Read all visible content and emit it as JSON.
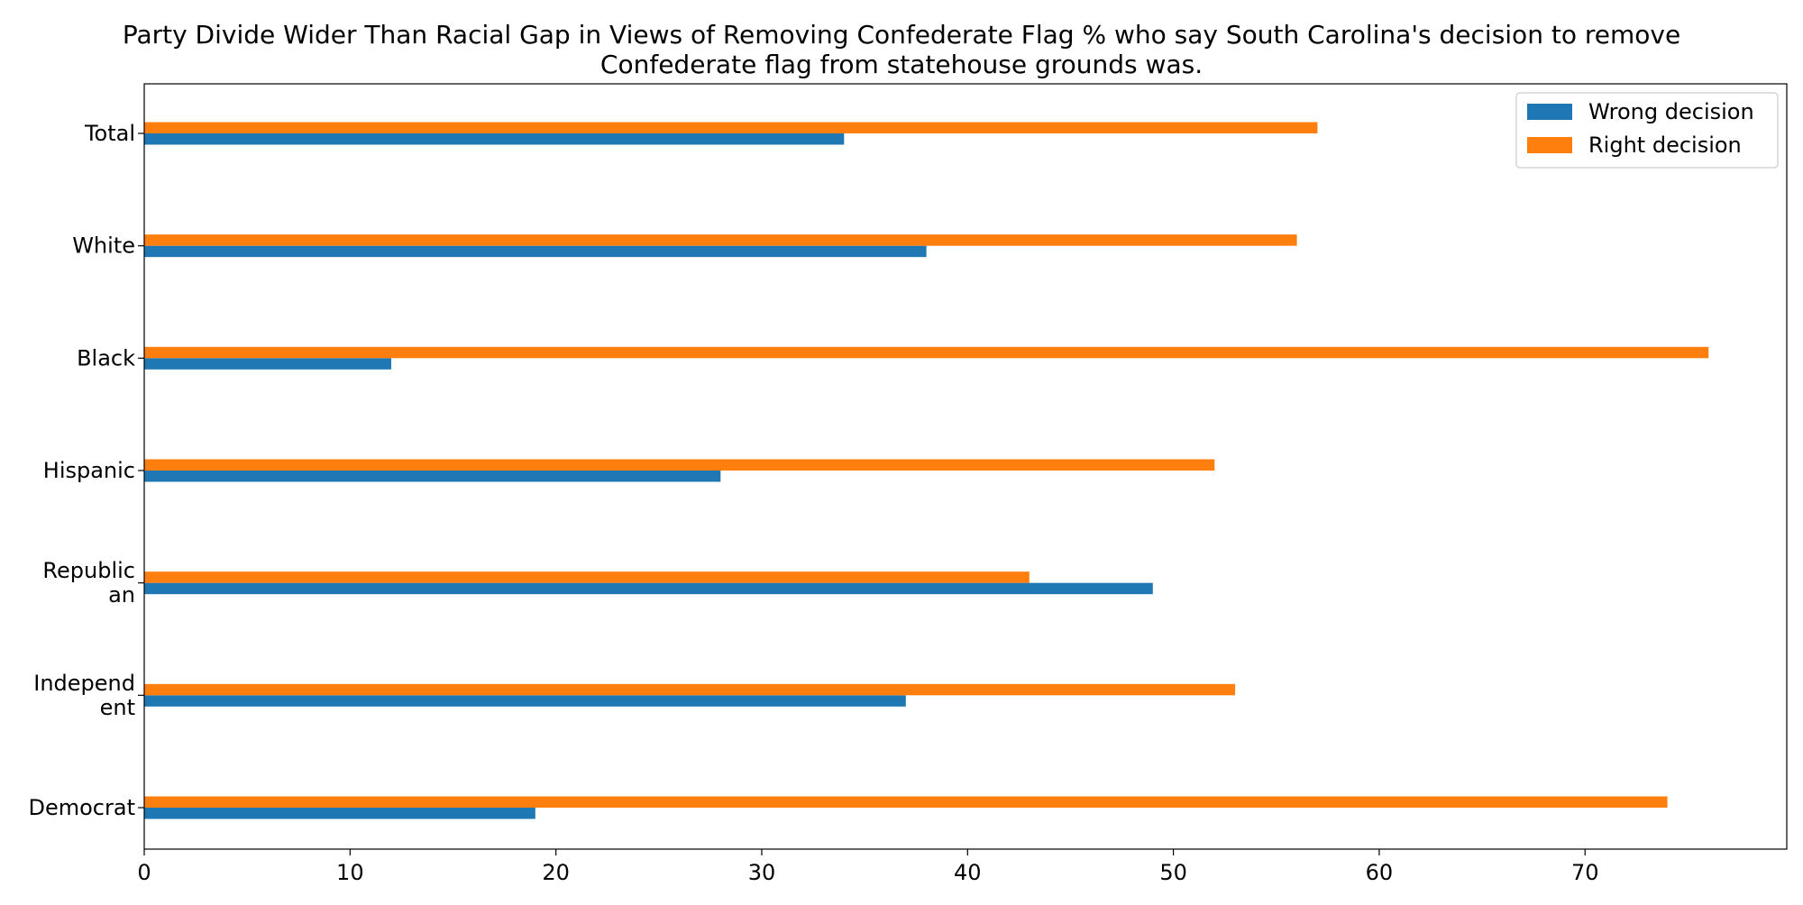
{
  "chart_data": {
    "type": "bar",
    "orientation": "horizontal",
    "title_lines": [
      "Party Divide Wider Than Racial Gap in Views of Removing Confederate Flag % who say South Carolina's decision to remove",
      "Confederate flag from statehouse grounds was."
    ],
    "categories": [
      [
        "Total"
      ],
      [
        "White"
      ],
      [
        "Black"
      ],
      [
        "Hispanic"
      ],
      [
        "Republic",
        "an"
      ],
      [
        "Independ",
        "ent"
      ],
      [
        "Democrat"
      ]
    ],
    "series": [
      {
        "name": "Wrong decision",
        "color": "#1f77b4",
        "values": [
          34,
          38,
          12,
          28,
          49,
          37,
          19
        ]
      },
      {
        "name": "Right decision",
        "color": "#ff7f0e",
        "values": [
          57,
          56,
          76,
          52,
          43,
          53,
          74
        ]
      }
    ],
    "xlim": [
      0,
      79.8
    ],
    "xticks": [
      0,
      10,
      20,
      30,
      40,
      50,
      60,
      70
    ],
    "xlabel": "",
    "ylabel": "",
    "grid": false,
    "legend_position": "top-right"
  }
}
